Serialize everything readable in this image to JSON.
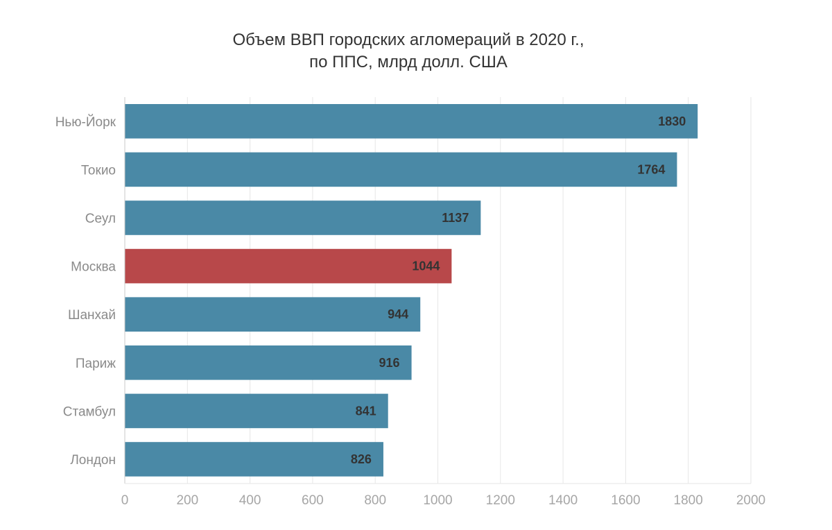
{
  "chart_data": {
    "type": "bar",
    "orientation": "horizontal",
    "title": "Объем ВВП городских агломераций в 2020 г.,",
    "subtitle": "по ППС, млрд долл. США",
    "categories": [
      "Нью-Йорк",
      "Токио",
      "Сеул",
      "Москва",
      "Шанхай",
      "Париж",
      "Стамбул",
      "Лондон"
    ],
    "values": [
      1830,
      1764,
      1137,
      1044,
      944,
      916,
      841,
      826
    ],
    "xlim": [
      0,
      2000
    ],
    "xticks": [
      0,
      200,
      400,
      600,
      800,
      1000,
      1200,
      1400,
      1600,
      1800,
      2000
    ],
    "grid": true,
    "legend": "none",
    "colors": {
      "default": "#4a89a6",
      "highlight": "#b8484a"
    },
    "highlight_category": "Москва"
  }
}
